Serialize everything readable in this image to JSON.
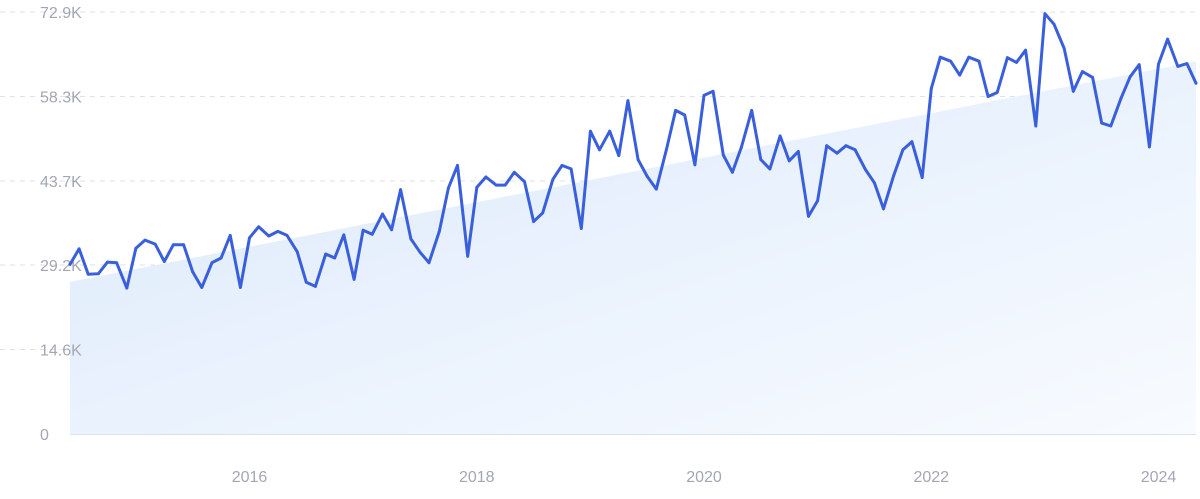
{
  "chart_data": {
    "type": "line",
    "title": "",
    "xlabel": "",
    "ylabel": "",
    "grid": true,
    "ylim": [
      0,
      72900
    ],
    "y_ticks": [
      {
        "value": 0,
        "label": "0"
      },
      {
        "value": 14600,
        "label": "14.6K"
      },
      {
        "value": 29200,
        "label": "29.2K"
      },
      {
        "value": 43700,
        "label": "43.7K"
      },
      {
        "value": 58300,
        "label": "58.3K"
      },
      {
        "value": 72900,
        "label": "72.9K"
      }
    ],
    "x_ticks": [
      {
        "value": 2016,
        "label": "2016"
      },
      {
        "value": 2018,
        "label": "2018"
      },
      {
        "value": 2020,
        "label": "2020"
      },
      {
        "value": 2022,
        "label": "2022"
      },
      {
        "value": 2024,
        "label": "2024"
      }
    ],
    "xlim": [
      2014.42,
      2024.33
    ],
    "colors": {
      "line": "#3a5fdc",
      "trend_fill_light": "#f4f8fe",
      "trend_fill_dark": "#dbe9fb",
      "grid": "#dde1ea",
      "tick_text": "#a3a7b3"
    },
    "series": [
      {
        "x": [
          2014.42,
          2014.5,
          2014.58,
          2014.67,
          2014.75,
          2014.83,
          2014.92,
          2015.0,
          2015.08,
          2015.17,
          2015.25,
          2015.33,
          2015.42,
          2015.5,
          2015.58,
          2015.67,
          2015.75,
          2015.83,
          2015.92,
          2016.0,
          2016.08,
          2016.17,
          2016.25,
          2016.33,
          2016.42,
          2016.5,
          2016.58,
          2016.67,
          2016.75,
          2016.83,
          2016.92,
          2017.0,
          2017.08,
          2017.17,
          2017.25,
          2017.33,
          2017.42,
          2017.5,
          2017.58,
          2017.67,
          2017.75,
          2017.83,
          2017.92,
          2018.0,
          2018.08,
          2018.17,
          2018.25,
          2018.33,
          2018.42,
          2018.5,
          2018.58,
          2018.67,
          2018.75,
          2018.83,
          2018.92,
          2019.0,
          2019.08,
          2019.17,
          2019.25,
          2019.33,
          2019.42,
          2019.5,
          2019.58,
          2019.67,
          2019.75,
          2019.83,
          2019.92,
          2020.0,
          2020.08,
          2020.17,
          2020.25,
          2020.33,
          2020.42,
          2020.5,
          2020.58,
          2020.67,
          2020.75,
          2020.83,
          2020.92,
          2021.0,
          2021.08,
          2021.17,
          2021.25,
          2021.33,
          2021.42,
          2021.5,
          2021.58,
          2021.67,
          2021.75,
          2021.83,
          2021.92,
          2022.0,
          2022.08,
          2022.17,
          2022.25,
          2022.33,
          2022.42,
          2022.5,
          2022.58,
          2022.67,
          2022.75,
          2022.83,
          2022.92,
          2023.0,
          2023.08,
          2023.17,
          2023.25,
          2023.33,
          2023.42,
          2023.5,
          2023.58,
          2023.67,
          2023.75,
          2023.83,
          2023.92,
          2024.0,
          2024.08,
          2024.17,
          2024.25,
          2024.33
        ],
        "values": [
          29300,
          32000,
          27600,
          27700,
          29700,
          29600,
          25200,
          32100,
          33500,
          32800,
          29800,
          32700,
          32700,
          28000,
          25300,
          29600,
          30400,
          34300,
          25300,
          33900,
          35800,
          34200,
          35000,
          34300,
          31500,
          26200,
          25500,
          31100,
          30400,
          34400,
          26700,
          35200,
          34500,
          38000,
          35300,
          42200,
          33700,
          31400,
          29600,
          35000,
          42500,
          46400,
          30700,
          42600,
          44400,
          43000,
          43000,
          45200,
          43600,
          36700,
          38200,
          44000,
          46400,
          45800,
          35500,
          52300,
          49100,
          52300,
          48100,
          57600,
          47400,
          44500,
          42300,
          49200,
          55900,
          55100,
          46500,
          58500,
          59200,
          48200,
          45200,
          49600,
          55900,
          47400,
          45800,
          51500,
          47200,
          48800,
          37600,
          40300,
          49800,
          48500,
          49800,
          49100,
          45700,
          43400,
          38900,
          44700,
          49100,
          50500,
          44300,
          59700,
          65100,
          64400,
          62000,
          65100,
          64400,
          58300,
          59000,
          65000,
          64200,
          66300,
          53200,
          72600,
          70800,
          66600,
          59200,
          62600,
          61600,
          53700,
          53200,
          58000,
          61700,
          63800,
          49600,
          63900,
          68200,
          63500,
          64000,
          60600
        ]
      }
    ]
  }
}
